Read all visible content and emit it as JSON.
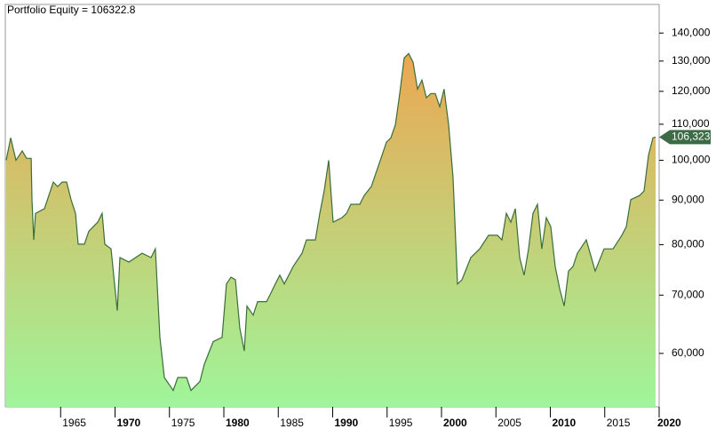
{
  "chart_data": {
    "type": "area",
    "title": "Portfolio Equity = 106322.8",
    "log_y": true,
    "xlim": [
      1960,
      2020
    ],
    "ylim": [
      52100,
      151000
    ],
    "xticks": [
      1965,
      1970,
      1975,
      1980,
      1985,
      1990,
      1995,
      2000,
      2005,
      2010,
      2015,
      2020
    ],
    "yticks": [
      {
        "value": 60000,
        "label": "60,000"
      },
      {
        "value": 70000,
        "label": "70,000"
      },
      {
        "value": 80000,
        "label": "80,000"
      },
      {
        "value": 90000,
        "label": "90,000"
      },
      {
        "value": 100000,
        "label": "100,000"
      },
      {
        "value": 110000,
        "label": "110,000"
      },
      {
        "value": 120000,
        "label": "120,000"
      },
      {
        "value": 130000,
        "label": "130,000"
      },
      {
        "value": 140000,
        "label": "140,000"
      }
    ],
    "marker": {
      "value": 106322.8,
      "label": "106,323",
      "color": "#3d6b45"
    },
    "series": [
      {
        "line_color": "#3a6e3a",
        "fill_top": "#f0a34e",
        "fill_bottom": "#9ff59a",
        "x": [
          1960.0,
          1960.41,
          1960.9,
          1961.47,
          1961.88,
          1962.29,
          1962.37,
          1962.53,
          1962.69,
          1963.51,
          1964.33,
          1964.73,
          1965.14,
          1965.55,
          1965.96,
          1966.37,
          1966.61,
          1967.18,
          1967.59,
          1968.41,
          1968.82,
          1969.06,
          1969.63,
          1970.04,
          1970.2,
          1970.45,
          1971.27,
          1972.49,
          1973.31,
          1973.71,
          1974.12,
          1974.53,
          1975.35,
          1975.76,
          1976.57,
          1976.98,
          1977.8,
          1978.2,
          1979.02,
          1979.84,
          1980.24,
          1980.65,
          1981.06,
          1981.47,
          1981.88,
          1982.12,
          1982.69,
          1983.1,
          1983.92,
          1984.33,
          1984.73,
          1985.14,
          1985.55,
          1986.37,
          1987.18,
          1987.59,
          1988.41,
          1988.82,
          1989.22,
          1989.63,
          1990.04,
          1990.86,
          1991.27,
          1991.67,
          1992.49,
          1992.9,
          1993.55,
          1994.53,
          1994.94,
          1995.35,
          1995.76,
          1996.16,
          1996.57,
          1996.98,
          1997.39,
          1997.8,
          1998.2,
          1998.61,
          1999.02,
          1999.43,
          1999.84,
          2000.24,
          2000.65,
          2001.06,
          2001.47,
          2001.88,
          2002.69,
          2003.51,
          2004.33,
          2005.14,
          2005.55,
          2005.96,
          2006.37,
          2006.78,
          2007.18,
          2007.59,
          2008.0,
          2008.41,
          2008.82,
          2009.22,
          2009.63,
          2010.04,
          2010.45,
          2010.86,
          2011.27,
          2011.67,
          2012.08,
          2012.49,
          2013.31,
          2014.12,
          2014.94,
          2015.76,
          2016.57,
          2016.98,
          2017.39,
          2018.2,
          2018.61,
          2019.02,
          2019.43,
          2019.67
        ],
        "values": [
          100000,
          106100,
          100000,
          102500,
          100500,
          100500,
          90100,
          81000,
          86900,
          88000,
          94400,
          93300,
          94400,
          94400,
          90100,
          86900,
          80100,
          80100,
          82900,
          84900,
          86900,
          80100,
          79100,
          70400,
          67200,
          77300,
          76400,
          78200,
          77300,
          79100,
          62600,
          56300,
          54400,
          56300,
          56300,
          54400,
          55700,
          58300,
          61900,
          62600,
          72100,
          73400,
          72900,
          64100,
          60400,
          68000,
          66400,
          68800,
          68800,
          70400,
          72100,
          73800,
          72100,
          75500,
          78200,
          81000,
          81000,
          86900,
          92200,
          100000,
          84900,
          85900,
          86900,
          89000,
          89000,
          91100,
          93300,
          101300,
          104900,
          106100,
          109900,
          119300,
          131100,
          132600,
          129600,
          120700,
          123600,
          118000,
          119300,
          119300,
          115200,
          120700,
          109900,
          95500,
          72100,
          72900,
          77300,
          79100,
          82000,
          82000,
          81000,
          86900,
          84900,
          88000,
          77300,
          73800,
          79100,
          86900,
          89000,
          79100,
          85900,
          83900,
          75500,
          71200,
          68000,
          74600,
          75500,
          78200,
          81000,
          74600,
          79100,
          79100,
          82000,
          83900,
          90100,
          91100,
          92200,
          101300,
          106100,
          106322.8
        ]
      }
    ]
  }
}
